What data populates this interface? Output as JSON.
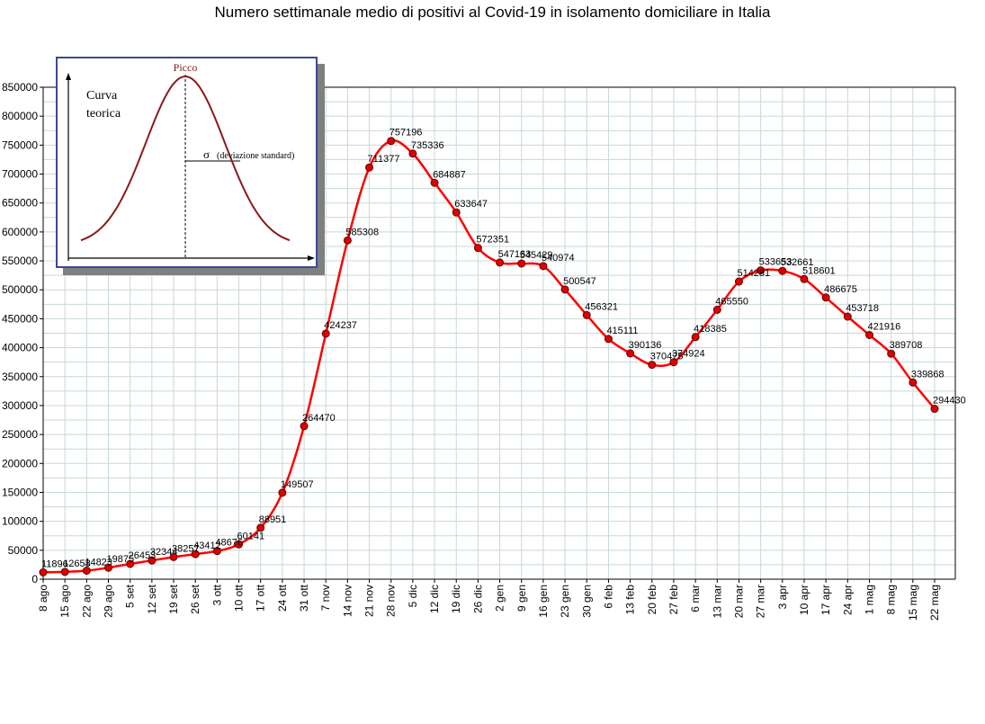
{
  "chart_data": {
    "type": "line",
    "title": "Numero settimanale medio di positivi al Covid-19  in isolamento domiciliare in Italia",
    "xlabel": "",
    "ylabel": "",
    "ylim": [
      0,
      850000
    ],
    "yticks": [
      0,
      50000,
      100000,
      150000,
      200000,
      250000,
      300000,
      350000,
      400000,
      450000,
      500000,
      550000,
      600000,
      650000,
      700000,
      750000,
      800000,
      850000
    ],
    "ytick_labels": [
      "0",
      "50000",
      "100000",
      "150000",
      "200000",
      "250000",
      "300000",
      "350000",
      "400000",
      "450000",
      "500000",
      "550000",
      "600000",
      "650000",
      "700000",
      "750000",
      "800000",
      "850000"
    ],
    "grid": true,
    "categories": [
      "8 ago",
      "15 ago",
      "22 ago",
      "29 ago",
      "5 set",
      "12 set",
      "19 set",
      "26 set",
      "3 ott",
      "10 ott",
      "17 ott",
      "24 ott",
      "31 ott",
      "7 nov",
      "14 nov",
      "21 nov",
      "28 nov",
      "5 dic",
      "12 dic",
      "19 dic",
      "26 dic",
      "2 gen",
      "9 gen",
      "16 gen",
      "23 gen",
      "30 gen",
      "6 feb",
      "13 feb",
      "20 feb",
      "27 feb",
      "6 mar",
      "13 mar",
      "20 mar",
      "27 mar",
      "3 apr",
      "10 apr",
      "17 apr",
      "24 apr",
      "1 mag",
      "8 mag",
      "15 mag",
      "22 mag"
    ],
    "series": [
      {
        "color": "#ff0000",
        "marker_color": "#dd0000",
        "values": [
          11896,
          12658,
          14823,
          19875,
          26453,
          32344,
          38257,
          43412,
          48676,
          60141,
          88951,
          149507,
          264470,
          424237,
          585308,
          711377,
          757196,
          735336,
          684887,
          633647,
          572351,
          547163,
          545429,
          540974,
          500547,
          456321,
          415111,
          390136,
          370475,
          374924,
          418385,
          465550,
          514281,
          533653,
          532661,
          518601,
          486675,
          453718,
          421916,
          389708,
          339868,
          294430
        ],
        "labels": [
          "11896",
          "12658",
          "14823",
          "19875",
          "26453",
          "32344",
          "38257",
          "43412",
          "48676",
          "60141",
          "88951",
          "149507",
          "264470",
          "424237",
          "585308",
          "711377",
          "757196",
          "735336",
          "684887",
          "633647",
          "572351",
          "547163",
          "545429",
          "540974",
          "500547",
          "456321",
          "415111",
          "390136",
          "370475",
          "374924",
          "418385",
          "465550",
          "514281",
          "533653",
          "532661",
          "518601",
          "486675",
          "453718",
          "421916",
          "389708",
          "339868",
          "294430"
        ]
      }
    ],
    "inset": {
      "peak_label": "Picco",
      "curve_label_1": "Curva",
      "curve_label_2": "teorica",
      "sigma_symbol": "σ",
      "sigma_label": "(deviazione standard)",
      "border_color": "#3a4a9a",
      "curve_color": "#8b1a1a"
    }
  }
}
